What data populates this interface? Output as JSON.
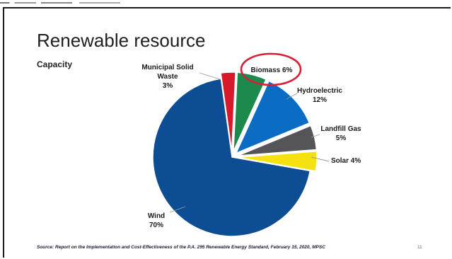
{
  "slide": {
    "title": "Renewable resource",
    "subtitle": "Capacity",
    "source": "Source: Report on the Implementation and Cost-Effectiveness of the P.A. 295 Renewable Energy Standard, February 15, 2020, MPSC",
    "page_number": "11"
  },
  "chart_data": {
    "type": "pie",
    "title": "Renewable resource",
    "subtitle": "Capacity",
    "slices": [
      {
        "name": "Municipal Solid Waste",
        "value": 3,
        "label_lines": [
          "Municipal Solid",
          "Waste",
          "3%"
        ],
        "color": "#d7192b"
      },
      {
        "name": "Biomass",
        "value": 6,
        "label_lines": [
          "Biomass 6%"
        ],
        "color": "#1b8a4c",
        "highlighted": true
      },
      {
        "name": "Hydroelectric",
        "value": 12,
        "label_lines": [
          "Hydroelectric",
          "12%"
        ],
        "color": "#0a6cc2"
      },
      {
        "name": "Landfill Gas",
        "value": 5,
        "label_lines": [
          "Landfill Gas",
          "5%"
        ],
        "color": "#555458"
      },
      {
        "name": "Solar",
        "value": 4,
        "label_lines": [
          "Solar 4%"
        ],
        "color": "#f4e10f"
      },
      {
        "name": "Wind",
        "value": 70,
        "label_lines": [
          "Wind",
          "70%"
        ],
        "color": "#0c4d93"
      }
    ],
    "highlight_color": "#d81f35"
  }
}
